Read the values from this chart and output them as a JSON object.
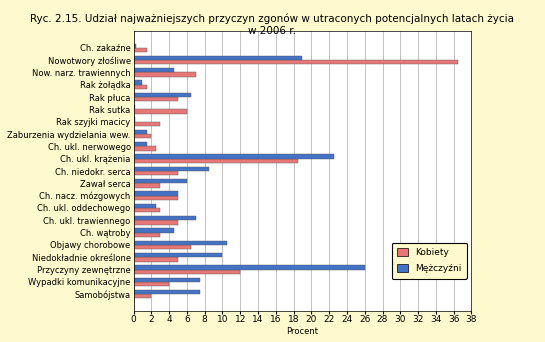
{
  "title": "Ryc. 2.15. Udział najważniejszych przyczyn zgonów w utraconych potencjalnych latach życia\nw 2006 r.",
  "xlabel": "Procent",
  "categories": [
    "Ch. zakaźne",
    "Nowotwory złośliwe",
    "Now. narz. trawiennych",
    "Rak żołądka",
    "Rak płuca",
    "Rak sutka",
    "Rak szyjki macicy",
    "Zaburzenia wydzielania wew.",
    "Ch. ukl. nerwowego",
    "Ch. ukl. krążenia",
    "Ch. niedokr. serca",
    "Zawał serca",
    "Ch. nacz. mózgowych",
    "Ch. ukl. oddechowego",
    "Ch. ukl. trawiennego",
    "Ch. wątroby",
    "Objawy chorobowe",
    "Niedokładnie określone",
    "Przyczyny zewnętrzne",
    "Wypadki komunikacyjne",
    "Samobójstwa"
  ],
  "kobiety": [
    1.5,
    36.5,
    7.0,
    1.5,
    5.0,
    6.0,
    3.0,
    2.0,
    2.5,
    18.5,
    5.0,
    3.0,
    5.0,
    3.0,
    5.0,
    3.0,
    6.5,
    5.0,
    12.0,
    4.0,
    2.0
  ],
  "mezczyzni": [
    0.3,
    19.0,
    4.5,
    1.0,
    6.5,
    0.2,
    0.2,
    1.5,
    1.5,
    22.5,
    8.5,
    6.0,
    5.0,
    2.5,
    7.0,
    4.5,
    10.5,
    10.0,
    26.0,
    7.5,
    7.5
  ],
  "color_kobiety": "#E87878",
  "color_mezczyzni": "#4472C4",
  "background_color": "#FFFACD",
  "plot_background": "#FFFFFF",
  "xlim": [
    0,
    38
  ],
  "xticks": [
    0,
    2,
    4,
    6,
    8,
    10,
    12,
    14,
    16,
    18,
    20,
    22,
    24,
    26,
    28,
    30,
    32,
    34,
    36,
    38
  ],
  "title_fontsize": 7.5,
  "label_fontsize": 6.0,
  "tick_fontsize": 6.5
}
